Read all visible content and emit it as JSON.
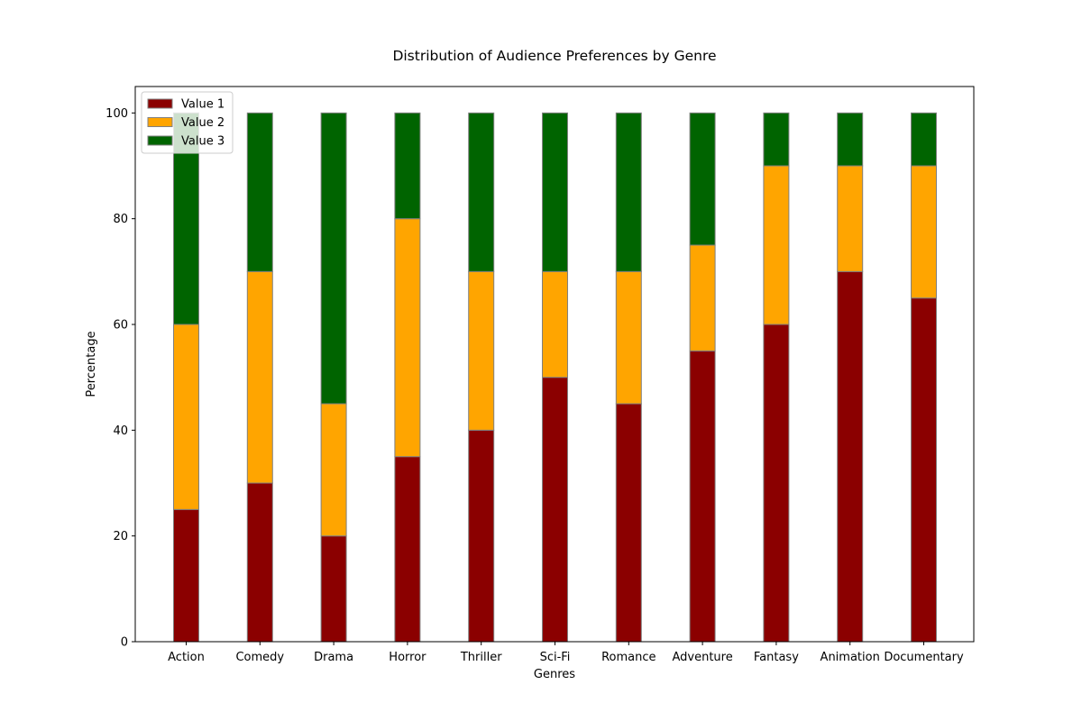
{
  "chart_data": {
    "type": "bar",
    "stacked": true,
    "title": "Distribution of Audience Preferences by Genre",
    "xlabel": "Genres",
    "ylabel": "Percentage",
    "ylim": [
      0,
      105
    ],
    "yticks": [
      0,
      20,
      40,
      60,
      80,
      100
    ],
    "grid": false,
    "legend_position": "top-left",
    "categories": [
      "Action",
      "Comedy",
      "Drama",
      "Horror",
      "Thriller",
      "Sci-Fi",
      "Romance",
      "Adventure",
      "Fantasy",
      "Animation",
      "Documentary"
    ],
    "series": [
      {
        "name": "Value 1",
        "color": "#8b0000",
        "values": [
          25,
          30,
          20,
          35,
          40,
          50,
          45,
          55,
          60,
          70,
          65
        ]
      },
      {
        "name": "Value 2",
        "color": "#ffa500",
        "values": [
          35,
          40,
          25,
          45,
          30,
          20,
          25,
          20,
          30,
          20,
          25
        ]
      },
      {
        "name": "Value 3",
        "color": "#006400",
        "values": [
          40,
          30,
          55,
          20,
          30,
          30,
          30,
          25,
          10,
          10,
          10
        ]
      }
    ]
  }
}
